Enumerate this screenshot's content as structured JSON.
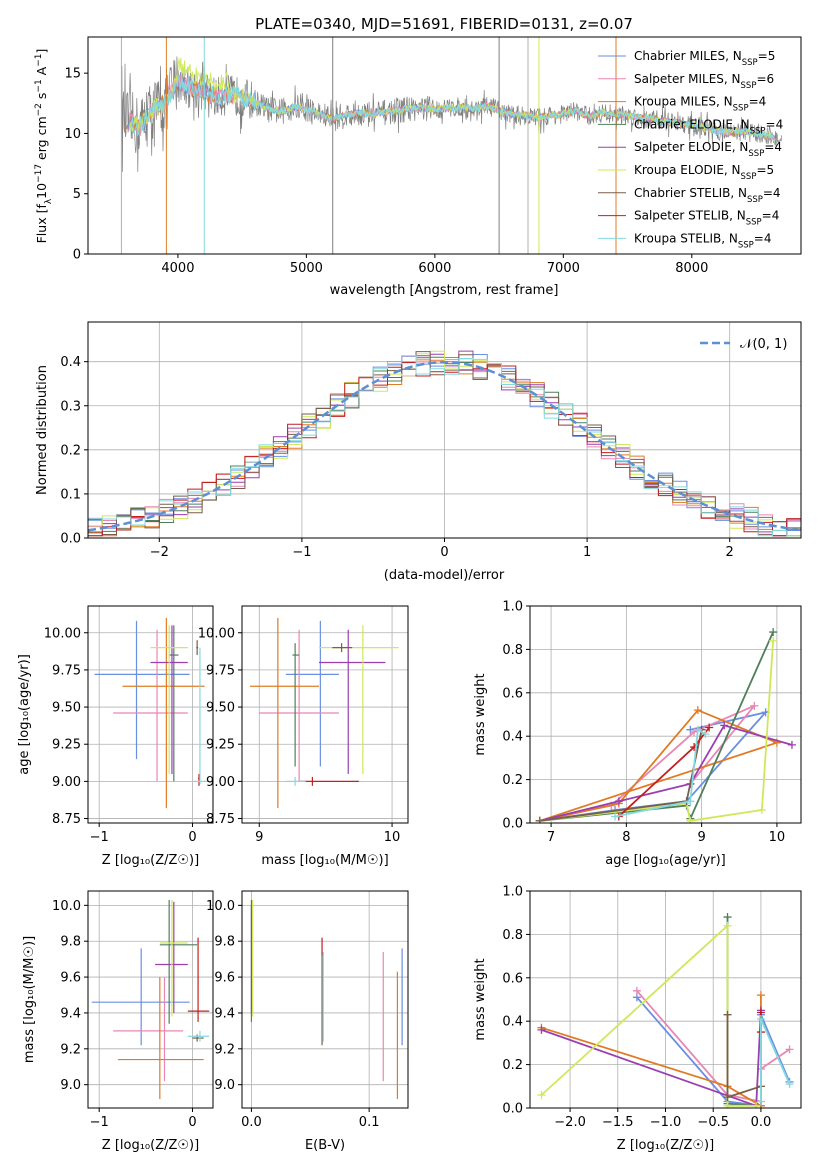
{
  "title": "PLATE=0340, MJD=51691, FIBERID=0131, z=0.07",
  "colors": {
    "Chabrier MILES": "#6a8fe0",
    "Salpeter MILES": "#e887b4",
    "Kroupa MILES": "#e07b25",
    "Chabrier ELODIE": "#4f7f5b",
    "Salpeter ELODIE": "#9a3fb0",
    "Kroupa ELODIE": "#cfe85a",
    "Chabrier STELIB": "#7a5e4a",
    "Salpeter STELIB": "#c21f1f",
    "Kroupa STELIB": "#84d9df"
  },
  "chart_data": [
    {
      "id": "spectrum",
      "type": "line",
      "title": "PLATE=0340, MJD=51691, FIBERID=0131, z=0.07",
      "xlabel": "wavelength [Angstrom, rest frame]",
      "ylabel": "Flux [f_λ 10^-17 erg cm^-2 s^-1 A^-1]",
      "ylabel_parts": {
        "a": "Flux [f",
        "b": "λ",
        "c": "10",
        "d": "−17",
        "e": " erg cm",
        "f": "−2",
        "g": " s",
        "h": "−1",
        "i": " A",
        "j": "−1",
        "k": "]"
      },
      "xlim": [
        3300,
        8850
      ],
      "ylim": [
        0,
        18
      ],
      "xticks": [
        "4000",
        "5000",
        "6000",
        "7000",
        "8000"
      ],
      "yticks": [
        "0",
        "5",
        "10",
        "15"
      ],
      "legend_position": "top-right",
      "legend": [
        {
          "base": "Chabrier MILES, N",
          "sub": "SSP",
          "tail": "=5"
        },
        {
          "base": "Salpeter MILES, N",
          "sub": "SSP",
          "tail": "=6"
        },
        {
          "base": "Kroupa MILES, N",
          "sub": "SSP",
          "tail": "=4"
        },
        {
          "base": "Chabrier ELODIE, N",
          "sub": "SSP",
          "tail": "=4"
        },
        {
          "base": "Salpeter ELODIE, N",
          "sub": "SSP",
          "tail": "=4"
        },
        {
          "base": "Kroupa ELODIE, N",
          "sub": "SSP",
          "tail": "=5"
        },
        {
          "base": "Chabrier STELIB, N",
          "sub": "SSP",
          "tail": "=4"
        },
        {
          "base": "Salpeter STELIB, N",
          "sub": "SSP",
          "tail": "=4"
        },
        {
          "base": "Kroupa STELIB, N",
          "sub": "SSP",
          "tail": "=4"
        }
      ],
      "continuum_x": [
        3550,
        3700,
        3800,
        3900,
        4000,
        4100,
        4200,
        4300,
        4400,
        4500,
        4600,
        4700,
        4800,
        4900,
        5000,
        5100,
        5200,
        5300,
        5400,
        5500,
        5600,
        5700,
        5800,
        5900,
        6000,
        6100,
        6200,
        6300,
        6400,
        6500,
        6600,
        6700,
        6800,
        6900,
        7000,
        7100,
        7200,
        7300,
        7400,
        7500,
        7600,
        7700,
        7800,
        7900,
        8000,
        8100,
        8200,
        8300,
        8400,
        8500,
        8600,
        8700
      ],
      "continuum_y": [
        11.5,
        10.5,
        12.0,
        12.5,
        14.5,
        13.8,
        13.5,
        13.0,
        13.2,
        13.0,
        12.6,
        12.0,
        11.8,
        12.2,
        12.0,
        11.6,
        11.2,
        11.5,
        11.7,
        11.6,
        11.7,
        11.9,
        12.1,
        12.1,
        12.0,
        12.1,
        12.2,
        12.0,
        12.3,
        11.9,
        11.6,
        11.5,
        11.3,
        11.5,
        11.6,
        11.9,
        11.4,
        11.7,
        11.6,
        11.5,
        11.3,
        11.2,
        11.0,
        10.8,
        10.7,
        10.5,
        10.2,
        10.1,
        10.2,
        10.0,
        9.8,
        9.2
      ]
    },
    {
      "id": "residuals",
      "type": "line",
      "xlabel": "(data-model)/error",
      "ylabel": "Normed distribution",
      "xlim": [
        -2.5,
        2.5
      ],
      "ylim": [
        0,
        0.49
      ],
      "xticks": [
        "−2",
        "−1",
        "0",
        "1",
        "2"
      ],
      "yticks": [
        "0.0",
        "0.1",
        "0.2",
        "0.3",
        "0.4"
      ],
      "legend": "𝒩(0, 1)",
      "legend_position": "top-right",
      "series": [
        {
          "name": "𝒩(0, 1)",
          "mean": 0,
          "std": 1
        }
      ]
    },
    {
      "id": "age-vs-Z",
      "type": "scatter",
      "xlabel": "Z [log10(Z/Z☉)]",
      "ylabel": "age  [log10(age/yr)]",
      "xlim": [
        -1.12,
        0.22
      ],
      "ylim": [
        8.72,
        10.18
      ],
      "xticks": [
        "−1",
        "0"
      ],
      "yticks": [
        "8.75",
        "9.00",
        "9.25",
        "9.50",
        "9.75",
        "10.00"
      ],
      "points": [
        {
          "model": "Chabrier MILES",
          "x": -0.6,
          "xlo": -1.05,
          "xhi": -0.03,
          "y": 9.72,
          "ylo": 9.15,
          "yhi": 10.08
        },
        {
          "model": "Salpeter MILES",
          "x": -0.38,
          "xlo": -0.85,
          "xhi": -0.05,
          "y": 9.46,
          "ylo": 9.0,
          "yhi": 10.02
        },
        {
          "model": "Kroupa MILES",
          "x": -0.28,
          "xlo": -0.75,
          "xhi": 0.13,
          "y": 9.64,
          "ylo": 8.82,
          "yhi": 10.1
        },
        {
          "model": "Chabrier ELODIE",
          "x": -0.2,
          "xlo": -0.25,
          "xhi": -0.15,
          "y": 9.85,
          "ylo": 9.0,
          "yhi": 10.05
        },
        {
          "model": "Salpeter ELODIE",
          "x": -0.22,
          "xlo": -0.45,
          "xhi": -0.05,
          "y": 9.8,
          "ylo": 9.05,
          "yhi": 10.05
        },
        {
          "model": "Kroupa ELODIE",
          "x": -0.25,
          "xlo": -0.45,
          "xhi": -0.05,
          "y": 9.9,
          "ylo": 9.05,
          "yhi": 10.05
        },
        {
          "model": "Chabrier STELIB",
          "x": 0.05,
          "xlo": 0.04,
          "xhi": 0.06,
          "y": 9.9,
          "ylo": 9.85,
          "yhi": 9.95
        },
        {
          "model": "Salpeter STELIB",
          "x": 0.07,
          "xlo": 0.06,
          "xhi": 0.08,
          "y": 9.02,
          "ylo": 8.97,
          "yhi": 9.05
        },
        {
          "model": "Kroupa STELIB",
          "x": 0.08,
          "xlo": 0.0,
          "xhi": 0.18,
          "y": 9.0,
          "ylo": 8.98,
          "yhi": 9.9
        }
      ]
    },
    {
      "id": "age-vs-mass",
      "type": "scatter",
      "xlabel": "mass [log10(M/M☉)]",
      "xlim": [
        8.87,
        10.12
      ],
      "ylim": [
        8.72,
        10.18
      ],
      "xticks": [
        "9",
        "10"
      ],
      "yticks": [
        "8.75",
        "9.00",
        "9.25",
        "9.50",
        "9.75",
        "10.00"
      ],
      "points": [
        {
          "model": "Chabrier MILES",
          "x": 9.46,
          "xlo": 9.2,
          "xhi": 9.6,
          "y": 9.72,
          "ylo": 9.1,
          "yhi": 10.08
        },
        {
          "model": "Salpeter MILES",
          "x": 9.3,
          "xlo": 9.0,
          "xhi": 9.6,
          "y": 9.46,
          "ylo": 9.0,
          "yhi": 10.02
        },
        {
          "model": "Kroupa MILES",
          "x": 9.14,
          "xlo": 8.93,
          "xhi": 9.45,
          "y": 9.64,
          "ylo": 8.82,
          "yhi": 10.1
        },
        {
          "model": "Chabrier ELODIE",
          "x": 9.27,
          "xlo": 9.25,
          "xhi": 9.3,
          "y": 9.85,
          "ylo": 9.1,
          "yhi": 9.93
        },
        {
          "model": "Salpeter ELODIE",
          "x": 9.67,
          "xlo": 9.45,
          "xhi": 9.95,
          "y": 9.8,
          "ylo": 9.05,
          "yhi": 10.02
        },
        {
          "model": "Kroupa ELODIE",
          "x": 9.78,
          "xlo": 9.45,
          "xhi": 10.05,
          "y": 9.9,
          "ylo": 9.05,
          "yhi": 10.05
        },
        {
          "model": "Chabrier STELIB",
          "x": 9.62,
          "xlo": 9.55,
          "xhi": 9.7,
          "y": 9.9,
          "ylo": 9.87,
          "yhi": 9.93
        },
        {
          "model": "Salpeter STELIB",
          "x": 9.4,
          "xlo": 9.3,
          "xhi": 9.75,
          "y": 9.0,
          "ylo": 8.97,
          "yhi": 9.03
        },
        {
          "model": "Kroupa STELIB",
          "x": 9.27,
          "xlo": 9.2,
          "xhi": 9.35,
          "y": 9.0,
          "ylo": 8.97,
          "yhi": 9.03
        }
      ]
    },
    {
      "id": "mass-weight-vs-age",
      "type": "line",
      "xlabel": "age  [log10(age/yr)]",
      "ylabel": "mass weight",
      "xlim": [
        6.72,
        10.32
      ],
      "ylim": [
        0,
        1.0
      ],
      "xticks": [
        "7",
        "8",
        "9",
        "10"
      ],
      "yticks": [
        "0.0",
        "0.2",
        "0.4",
        "0.6",
        "0.8",
        "1.0"
      ],
      "series": [
        {
          "model": "Chabrier MILES",
          "x": [
            6.85,
            7.85,
            8.8,
            9.85,
            8.85
          ],
          "y": [
            0.01,
            0.06,
            0.1,
            0.51,
            0.43
          ]
        },
        {
          "model": "Salpeter MILES",
          "x": [
            6.85,
            7.8,
            8.9,
            9.7,
            8.85
          ],
          "y": [
            0.01,
            0.08,
            0.42,
            0.54,
            0.18
          ]
        },
        {
          "model": "Kroupa MILES",
          "x": [
            6.85,
            7.9,
            8.95,
            10.0,
            6.85
          ],
          "y": [
            0.01,
            0.09,
            0.52,
            0.37,
            0.01
          ]
        },
        {
          "model": "Chabrier ELODIE",
          "x": [
            6.85,
            8.8,
            8.85,
            9.95
          ],
          "y": [
            0.01,
            0.08,
            0.02,
            0.88
          ]
        },
        {
          "model": "Salpeter ELODIE",
          "x": [
            6.85,
            7.9,
            8.85,
            9.3,
            10.2
          ],
          "y": [
            0.01,
            0.1,
            0.18,
            0.45,
            0.36
          ]
        },
        {
          "model": "Kroupa ELODIE",
          "x": [
            6.85,
            8.8,
            8.85,
            9.8,
            9.95
          ],
          "y": [
            0.01,
            0.09,
            0.01,
            0.06,
            0.84
          ]
        },
        {
          "model": "Chabrier STELIB",
          "x": [
            6.85,
            8.8,
            9.0
          ],
          "y": [
            0.01,
            0.1,
            0.43
          ]
        },
        {
          "model": "Salpeter STELIB",
          "x": [
            7.9,
            8.9,
            9.1
          ],
          "y": [
            0.03,
            0.35,
            0.44
          ]
        },
        {
          "model": "Kroupa STELIB",
          "x": [
            7.85,
            8.85,
            8.95,
            9.05
          ],
          "y": [
            0.03,
            0.1,
            0.43,
            0.41
          ]
        }
      ]
    },
    {
      "id": "mass-vs-Z",
      "type": "scatter",
      "xlabel": "Z [log10(Z/Z☉)]",
      "ylabel": "mass [log10(M/M☉)]",
      "xlim": [
        -1.12,
        0.22
      ],
      "ylim": [
        8.87,
        10.08
      ],
      "xticks": [
        "−1",
        "0"
      ],
      "yticks": [
        "9.0",
        "9.2",
        "9.4",
        "9.6",
        "9.8",
        "10.0"
      ],
      "points": [
        {
          "model": "Chabrier MILES",
          "x": -0.55,
          "xlo": -1.08,
          "xhi": -0.03,
          "y": 9.46,
          "ylo": 9.22,
          "yhi": 9.76
        },
        {
          "model": "Salpeter MILES",
          "x": -0.3,
          "xlo": -0.85,
          "xhi": -0.1,
          "y": 9.3,
          "ylo": 9.02,
          "yhi": 9.6
        },
        {
          "model": "Kroupa MILES",
          "x": -0.35,
          "xlo": -0.8,
          "xhi": 0.12,
          "y": 9.14,
          "ylo": 8.92,
          "yhi": 9.6
        },
        {
          "model": "Chabrier ELODIE",
          "x": -0.25,
          "xlo": -0.35,
          "xhi": 0.05,
          "y": 9.78,
          "ylo": 9.34,
          "yhi": 10.03
        },
        {
          "model": "Salpeter ELODIE",
          "x": -0.2,
          "xlo": -0.4,
          "xhi": -0.05,
          "y": 9.67,
          "ylo": 9.4,
          "yhi": 10.02
        },
        {
          "model": "Kroupa ELODIE",
          "x": -0.22,
          "xlo": -0.35,
          "xhi": -0.05,
          "y": 9.79,
          "ylo": 9.38,
          "yhi": 10.03
        },
        {
          "model": "Chabrier STELIB",
          "x": 0.05,
          "xlo": 0.0,
          "xhi": 0.12,
          "y": 9.26,
          "ylo": 9.24,
          "yhi": 9.28
        },
        {
          "model": "Salpeter STELIB",
          "x": 0.06,
          "xlo": -0.05,
          "xhi": 0.18,
          "y": 9.41,
          "ylo": 9.35,
          "yhi": 9.82
        },
        {
          "model": "Kroupa STELIB",
          "x": 0.08,
          "xlo": -0.05,
          "xhi": 0.18,
          "y": 9.27,
          "ylo": 9.24,
          "yhi": 9.3
        }
      ]
    },
    {
      "id": "mass-vs-EBV",
      "type": "scatter",
      "xlabel": "E(B-V)",
      "xlim": [
        -0.008,
        0.133
      ],
      "ylim": [
        8.87,
        10.08
      ],
      "xticks": [
        "0.0",
        "0.1"
      ],
      "yticks": [
        "9.0",
        "9.2",
        "9.4",
        "9.6",
        "9.8",
        "10.0"
      ],
      "points": [
        {
          "model": "Chabrier MILES",
          "x": 0.128,
          "ylo": 9.22,
          "yhi": 9.76
        },
        {
          "model": "Salpeter MILES",
          "x": 0.112,
          "ylo": 9.02,
          "yhi": 9.74
        },
        {
          "model": "Kroupa MILES",
          "x": 0.124,
          "ylo": 8.92,
          "yhi": 9.63
        },
        {
          "model": "Chabrier ELODIE",
          "x": 0.0,
          "ylo": 9.35,
          "yhi": 10.03
        },
        {
          "model": "Salpeter ELODIE",
          "x": 0.0,
          "ylo": 9.4,
          "yhi": 10.0
        },
        {
          "model": "Kroupa ELODIE",
          "x": 0.001,
          "ylo": 9.38,
          "yhi": 10.03
        },
        {
          "model": "Chabrier STELIB",
          "x": 0.06,
          "ylo": 9.22,
          "yhi": 9.74
        },
        {
          "model": "Salpeter STELIB",
          "x": 0.06,
          "ylo": 9.72,
          "yhi": 9.82
        },
        {
          "model": "Kroupa STELIB",
          "x": 0.061,
          "ylo": 9.24,
          "yhi": 9.74
        }
      ]
    },
    {
      "id": "mass-weight-vs-Z",
      "type": "line",
      "xlabel": "Z [log10(Z/Z☉)]",
      "ylabel": "mass weight",
      "xlim": [
        -2.42,
        0.42
      ],
      "ylim": [
        0,
        1.0
      ],
      "xticks": [
        "−2.0",
        "−1.5",
        "−1.0",
        "−0.5",
        "0.0"
      ],
      "yticks": [
        "0.0",
        "0.2",
        "0.4",
        "0.6",
        "0.8",
        "1.0"
      ],
      "series": [
        {
          "model": "Chabrier MILES",
          "x": [
            -1.3,
            -0.35,
            0.0,
            0.0,
            0.3
          ],
          "y": [
            0.51,
            0.03,
            0.01,
            0.43,
            0.12
          ]
        },
        {
          "model": "Salpeter MILES",
          "x": [
            -1.3,
            -0.35,
            0.0,
            0.0,
            0.3
          ],
          "y": [
            0.54,
            0.06,
            0.03,
            0.18,
            0.27
          ]
        },
        {
          "model": "Kroupa MILES",
          "x": [
            -2.3,
            -0.35,
            0.0,
            0.0
          ],
          "y": [
            0.37,
            0.1,
            0.01,
            0.52
          ]
        },
        {
          "model": "Chabrier ELODIE",
          "x": [
            -0.35,
            -0.35,
            -0.05
          ],
          "y": [
            0.88,
            0.02,
            0.01
          ]
        },
        {
          "model": "Salpeter ELODIE",
          "x": [
            -2.3,
            -0.05,
            0.0
          ],
          "y": [
            0.36,
            0.01,
            0.45
          ]
        },
        {
          "model": "Kroupa ELODIE",
          "x": [
            -2.3,
            -0.35,
            -0.35,
            -0.05
          ],
          "y": [
            0.06,
            0.84,
            0.01,
            0.01
          ]
        },
        {
          "model": "Chabrier STELIB",
          "x": [
            -0.35,
            -0.35,
            0.0
          ],
          "y": [
            0.43,
            0.05,
            0.1
          ]
        },
        {
          "model": "Salpeter STELIB",
          "x": [
            0.0,
            0.0
          ],
          "y": [
            0.44,
            0.35
          ]
        },
        {
          "model": "Kroupa STELIB",
          "x": [
            0.0,
            0.0,
            0.3
          ],
          "y": [
            0.03,
            0.41,
            0.11
          ]
        }
      ]
    }
  ]
}
